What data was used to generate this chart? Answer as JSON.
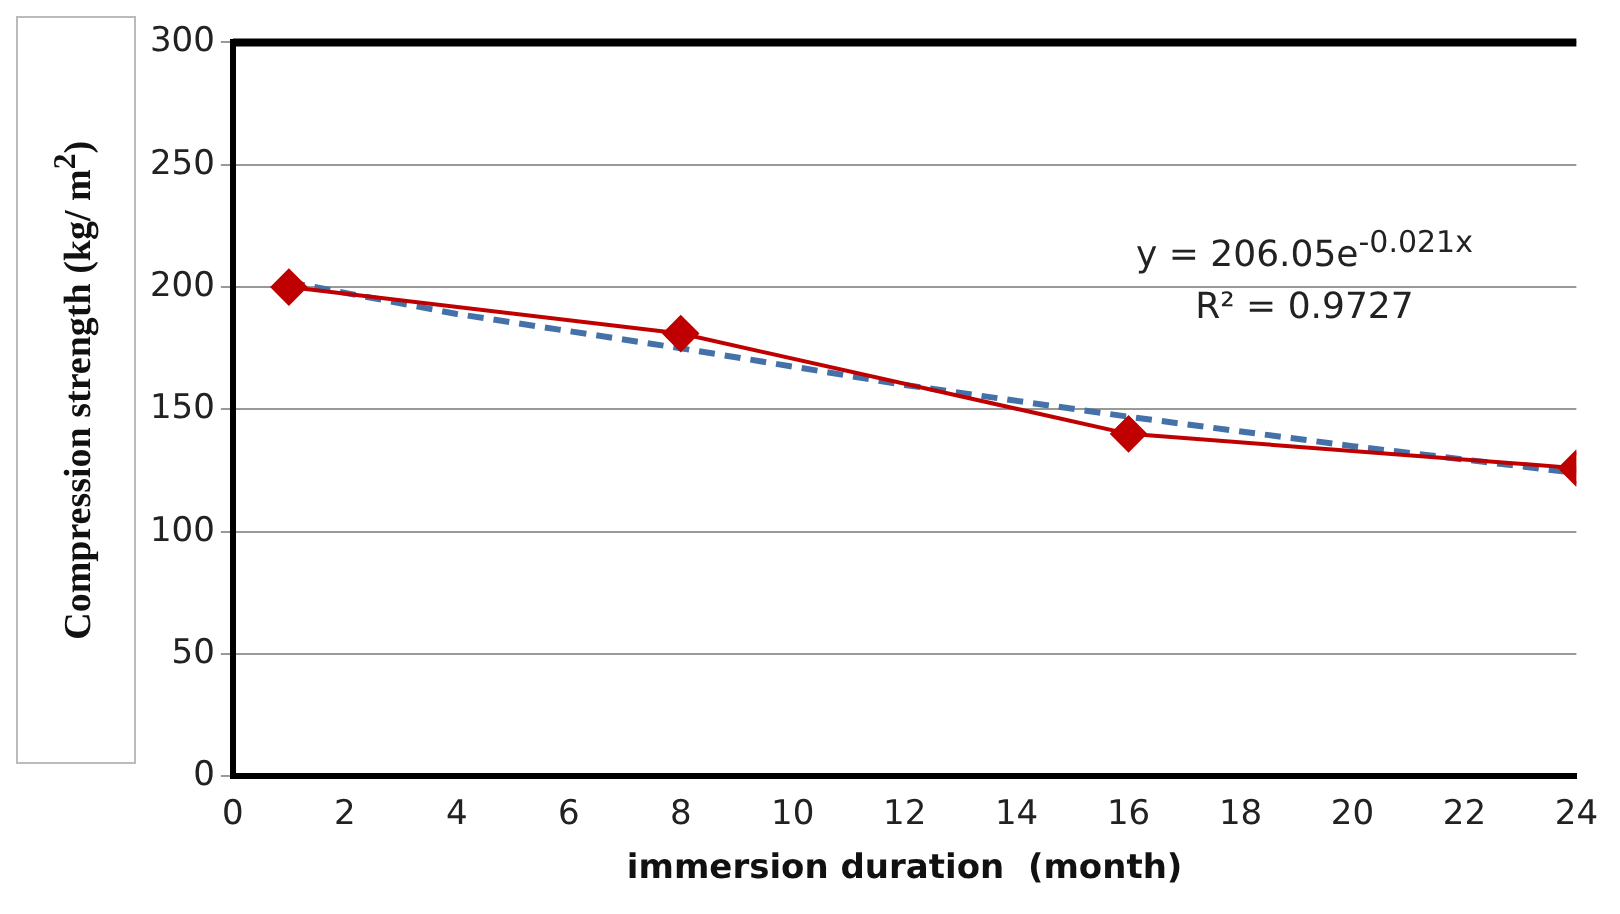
{
  "chart_data": {
    "type": "line",
    "xlabel": "immersion duration  (month)",
    "ylabel": "Compression strength (kg/ m$^{2}$)",
    "x": [
      1,
      8,
      16,
      24
    ],
    "series": [
      {
        "color": "#c00000",
        "values": [
          200,
          181,
          140,
          126
        ],
        "marker": "diamond",
        "line_style": "solid"
      },
      {
        "type": "line",
        "color": "#4472a8",
        "x": [
          1,
          4,
          8,
          12,
          16,
          20,
          24
        ],
        "values": [
          202,
          189,
          175,
          160,
          147,
          135,
          124
        ],
        "marker": "none",
        "line_style": "dashed"
      }
    ],
    "xlim": [
      0,
      24
    ],
    "xticks": [
      0,
      2,
      4,
      6,
      8,
      10,
      12,
      14,
      16,
      18,
      20,
      22,
      24
    ],
    "ylim": [
      0,
      300
    ],
    "yticks": [
      0,
      50,
      100,
      150,
      200,
      250,
      300
    ],
    "grid": "y",
    "legend": false,
    "annotations": [
      "y = 206.05e$^{-0.021x}$",
      "R² = 0.9727"
    ]
  }
}
